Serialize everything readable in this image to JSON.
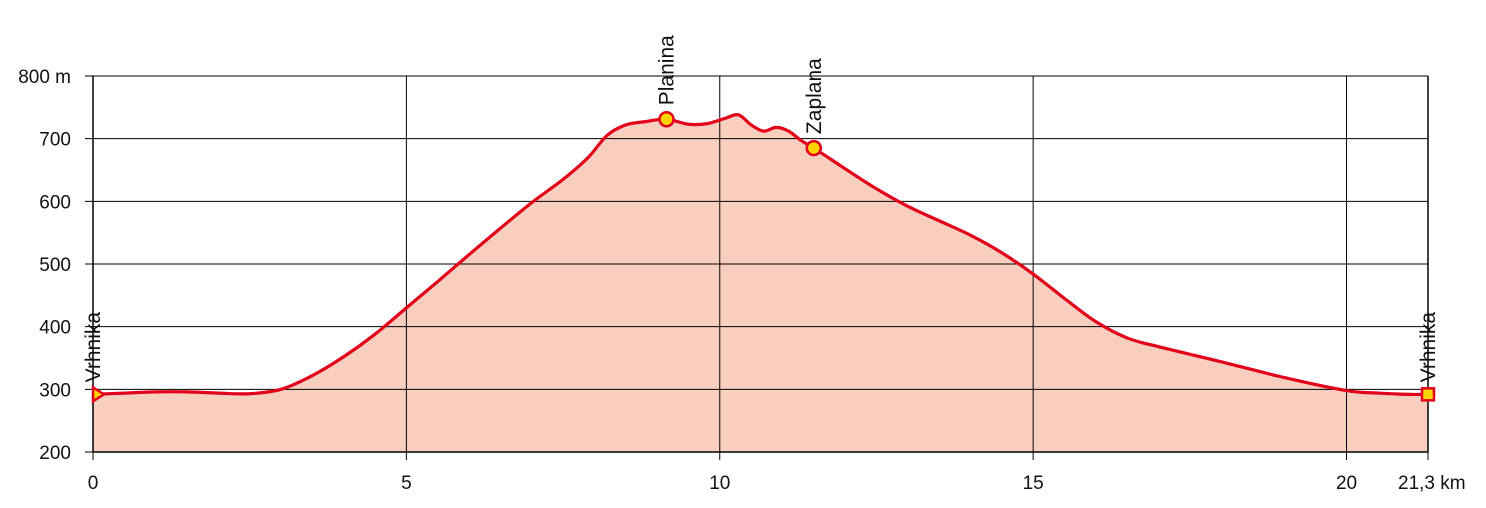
{
  "chart_data": {
    "type": "area",
    "xlabel": "",
    "ylabel": "",
    "xlim": [
      0,
      21.3
    ],
    "ylim": [
      200,
      800
    ],
    "grid": true,
    "x_ticks": [
      {
        "value": 0,
        "label": "0"
      },
      {
        "value": 5,
        "label": "5"
      },
      {
        "value": 10,
        "label": "10"
      },
      {
        "value": 15,
        "label": "15"
      },
      {
        "value": 20,
        "label": "20"
      },
      {
        "value": 21.3,
        "label": "21,3 km"
      }
    ],
    "y_ticks": [
      {
        "value": 200,
        "label": "200"
      },
      {
        "value": 300,
        "label": "300"
      },
      {
        "value": 400,
        "label": "400"
      },
      {
        "value": 500,
        "label": "500"
      },
      {
        "value": 600,
        "label": "600"
      },
      {
        "value": 700,
        "label": "700"
      },
      {
        "value": 800,
        "label": "800 m"
      }
    ],
    "series": [
      {
        "x": [
          0,
          0.5,
          1,
          1.5,
          2,
          2.5,
          3,
          3.5,
          4,
          4.5,
          5,
          5.5,
          6,
          6.5,
          7,
          7.5,
          7.9,
          8.2,
          8.5,
          8.8,
          9.15,
          9.5,
          9.8,
          10.1,
          10.3,
          10.5,
          10.7,
          10.9,
          11.1,
          11.3,
          11.5,
          12,
          12.5,
          13,
          13.5,
          14,
          14.5,
          15,
          15.5,
          16,
          16.5,
          17,
          18,
          19,
          20,
          20.5,
          21,
          21.3
        ],
        "values": [
          292,
          294,
          296,
          296,
          294,
          293,
          300,
          322,
          352,
          388,
          430,
          472,
          515,
          557,
          598,
          635,
          670,
          705,
          722,
          727,
          731,
          723,
          724,
          733,
          738,
          722,
          712,
          718,
          712,
          697,
          685,
          652,
          620,
          592,
          569,
          546,
          518,
          484,
          445,
          408,
          382,
          368,
          344,
          319,
          298,
          294,
          292,
          292
        ]
      }
    ],
    "colors": {
      "line": "#e2001a",
      "fill": "#f8cfbf",
      "marker": "#ffd400",
      "grid": "#000000",
      "axis": "#000000"
    },
    "waypoints": [
      {
        "name": "Vrhnika",
        "x": 0,
        "y": 292,
        "marker": "triangle"
      },
      {
        "name": "Planina",
        "x": 9.15,
        "y": 731,
        "marker": "circle"
      },
      {
        "name": "Zaplana",
        "x": 11.5,
        "y": 685,
        "marker": "circle"
      },
      {
        "name": "Vrhnika",
        "x": 21.3,
        "y": 292,
        "marker": "square"
      }
    ]
  }
}
